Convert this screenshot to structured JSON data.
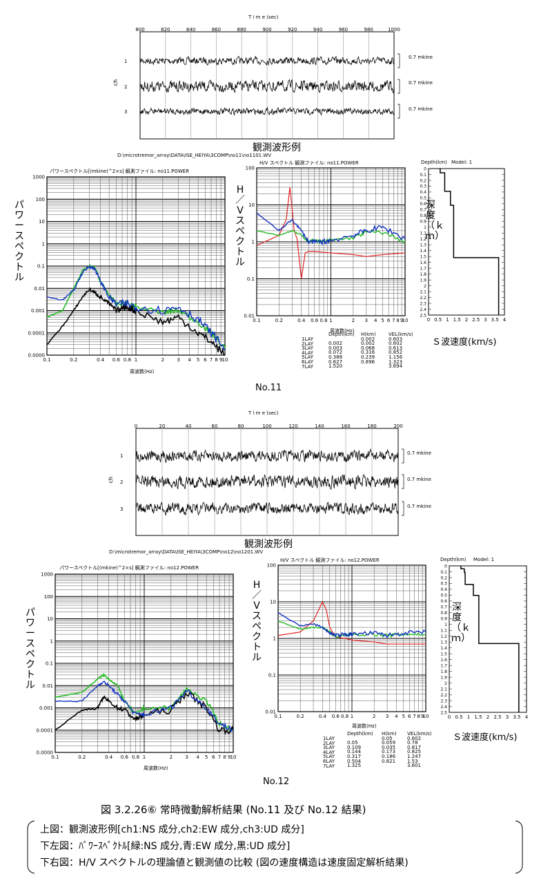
{
  "no11": {
    "wave": {
      "time_label": "T i m e (sec)",
      "xticks": [
        "800",
        "820",
        "840",
        "860",
        "880",
        "900",
        "920",
        "940",
        "960",
        "980",
        "1000"
      ],
      "ch_axis": "ch",
      "channels": [
        "1",
        "2",
        "3"
      ],
      "amp": [
        "0.7  mkine",
        "0.7  mkine",
        "0.7  mkine"
      ],
      "caption": "観測波形例"
    },
    "path": "D:\\microtremor_array\\DATA\\ISE_HEIYA\\3COMP\\no11\\no1101.WV",
    "power": {
      "title": "パワースペクトル[(mkine)^2×s]   観測ファイル:  no11.POWER",
      "ylabel": "パワースペクトル",
      "yticks": [
        "1000",
        "100",
        "10",
        "1",
        "0.1",
        "0.01",
        "0.001",
        "0.0001",
        "0.0000"
      ],
      "xticks": [
        "0.1",
        "0.2",
        "0.4",
        "0.6",
        "0.8",
        "1",
        "2",
        "3",
        "4",
        "5",
        "6",
        "7",
        "8",
        "9",
        "10"
      ],
      "xlabel": "周波数(Hz)"
    },
    "hv": {
      "title": "H/V  スペクトル  観測ファイル:  no11.POWER",
      "ylabel": "H／Vスペクトル",
      "yticks": [
        "10",
        "1",
        "0.1"
      ],
      "xticks": [
        "0.1",
        "0.2",
        "0.4",
        "0.6",
        "0.8",
        "1",
        "2",
        "3",
        "4",
        "5",
        "6",
        "7",
        "8",
        "9",
        "10"
      ],
      "xlabel": "周波数(Hz)"
    },
    "model": {
      "depth_label": "Depth(km)",
      "model_label": "Model: 1",
      "yticks": [
        "0",
        "0.1",
        "0.2",
        "0.3",
        "0.4",
        "0.5",
        "0.6",
        "0.7",
        "0.8",
        "0.9",
        "1",
        "1.1",
        "1.2",
        "1.3",
        "1.4",
        "1.5",
        "1.6",
        "1.7",
        "1.8",
        "1.9",
        "2",
        "2.1",
        "2.2",
        "2.3",
        "2.4",
        "2.5"
      ],
      "xticks": [
        "0",
        "0.5",
        "1",
        "1.5",
        "2",
        "2.5",
        "3",
        "3.5",
        "4"
      ],
      "ylabel": "深度（ｋｍ）",
      "xlabel": "Ｓ波速度(km/s)"
    },
    "layers": {
      "headers": [
        "Depth(km)",
        "H(km)",
        "VEL(km/s)"
      ],
      "names": [
        "1LAY",
        "2LAY",
        "3LAY",
        "4LAY",
        "5LAY",
        "6LAY",
        "7LAY"
      ],
      "depth": [
        "",
        "0.002",
        "0.003",
        "0.072",
        "0.388",
        "0.627",
        "1.520"
      ],
      "h": [
        "0.002",
        "0.002",
        "0.068",
        "0.316",
        "0.239",
        "0.896",
        ""
      ],
      "vel": [
        "0.603",
        "0.602",
        "0.613",
        "0.852",
        "1.156",
        "1.323",
        "3.694"
      ]
    },
    "label": "No.11"
  },
  "no12": {
    "wave": {
      "time_label": "T i m e (sec)",
      "xticks": [
        "0",
        "20",
        "40",
        "60",
        "80",
        "100",
        "120",
        "140",
        "160",
        "180",
        "200"
      ],
      "ch_axis": "ch",
      "channels": [
        "1",
        "2",
        "3"
      ],
      "amp": [
        "0.7  mkine",
        "0.7  mkine",
        "0.7  mkine"
      ],
      "caption": "観測波形例"
    },
    "path": "D:\\microtremor_array\\DATA\\ISE_HEIYA\\3COMP\\no12\\no1201.WV",
    "power": {
      "title": "パワースペクトル[(mkine)^2×s]   観測ファイル:  no12.POWER",
      "ylabel": "パワースペクトル",
      "yticks": [
        "1000",
        "100",
        "10",
        "1",
        "0.1",
        "0.01",
        "0.001",
        "0.0001",
        "0.0000"
      ],
      "xticks": [
        "0.1",
        "0.2",
        "0.4",
        "0.6",
        "0.8",
        "1",
        "2",
        "3",
        "4",
        "5",
        "6",
        "7",
        "8",
        "9",
        "10"
      ],
      "xlabel": "周波数(Hz)"
    },
    "hv": {
      "title": "H/V  スペクトル  観測ファイル:  no12.POWER",
      "ylabel": "H／Vスペクトル",
      "yticks": [
        "100",
        "10",
        "1",
        "0.1",
        "0.01"
      ],
      "xticks": [
        "0.1",
        "0.2",
        "0.4",
        "0.6",
        "0.8",
        "1",
        "2",
        "3",
        "4",
        "5",
        "6",
        "7",
        "8",
        "9",
        "10"
      ],
      "xlabel": "周波数(Hz)"
    },
    "model": {
      "depth_label": "Depth(km)",
      "model_label": "Model: 1",
      "yticks": [
        "0",
        "0.1",
        "0.2",
        "0.3",
        "0.4",
        "0.5",
        "0.6",
        "0.7",
        "0.8",
        "0.9",
        "1",
        "1.1",
        "1.2",
        "1.3",
        "1.4",
        "1.5",
        "1.6",
        "1.7",
        "1.8",
        "1.9",
        "2",
        "2.1",
        "2.2",
        "2.3",
        "2.4",
        "2.5"
      ],
      "xticks": [
        "0",
        "0.5",
        "1",
        "1.5",
        "2",
        "2.5",
        "3",
        "3.5",
        "4"
      ],
      "ylabel": "深度（ｋｍ）",
      "xlabel": "Ｓ波速度(km/s)"
    },
    "layers": {
      "headers": [
        "Depth(km)",
        "H(km)",
        "VEL(km/s)"
      ],
      "names": [
        "1LAY",
        "2LAY",
        "3LAY",
        "4LAY",
        "5LAY",
        "6LAY",
        "7LAY"
      ],
      "depth": [
        "",
        "0.05",
        "0.109",
        "0.144",
        "0.317",
        "0.504",
        "1.325"
      ],
      "h": [
        "0.05",
        "0.059",
        "0.035",
        "0.173",
        "0.186",
        "0.821",
        ""
      ],
      "vel": [
        "0.602",
        "0.78",
        "0.817",
        "0.825",
        "1.247",
        "1.53",
        "3.601"
      ]
    },
    "label": "No.12"
  },
  "figure": {
    "caption": "図 3.2.26⑥  常時微動解析結果 (No.11 及び No.12 結果)",
    "notes": [
      "上図：観測波形例[ch1:NS 成分,ch2:EW 成分,ch3:UD 成分]",
      "下左図：ﾊﾟﾜｰｽﾍﾟｸﾄﾙ[緑:NS 成分,青:EW 成分,黒:UD 成分]",
      "下右図：H/V スペクトルの理論値と観測値の比較 (図の速度構造は速度固定解析結果)"
    ]
  },
  "colors": {
    "ns": "#22bb22",
    "ew": "#1030c0",
    "ud": "#000000",
    "theory": "#e02020"
  },
  "chart_data": [
    {
      "type": "line",
      "name": "no11-power",
      "x_log": true,
      "y_log": true,
      "xlim": [
        0.1,
        10
      ],
      "ylim": [
        1e-05,
        1000
      ],
      "series": [
        {
          "name": "緑:NS",
          "x": [
            0.1,
            0.15,
            0.2,
            0.25,
            0.3,
            0.35,
            0.4,
            0.5,
            0.6,
            0.8,
            1,
            2,
            3,
            5,
            7,
            10
          ],
          "y": [
            0.0005,
            0.001,
            0.01,
            0.06,
            0.1,
            0.08,
            0.02,
            0.005,
            0.002,
            0.002,
            0.0015,
            0.0008,
            0.001,
            0.0003,
            0.0001,
            2e-05
          ]
        },
        {
          "name": "青:EW",
          "x": [
            0.1,
            0.15,
            0.2,
            0.25,
            0.3,
            0.35,
            0.4,
            0.5,
            0.6,
            0.8,
            1,
            2,
            3,
            5,
            7,
            10
          ],
          "y": [
            0.004,
            0.003,
            0.008,
            0.05,
            0.1,
            0.07,
            0.02,
            0.004,
            0.002,
            0.002,
            0.0015,
            0.001,
            0.0015,
            0.0004,
            0.0001,
            2e-05
          ]
        },
        {
          "name": "黒:UD",
          "x": [
            0.1,
            0.15,
            0.2,
            0.25,
            0.3,
            0.35,
            0.4,
            0.5,
            0.6,
            0.8,
            1,
            2,
            3,
            5,
            7,
            10
          ],
          "y": [
            3e-05,
            0.0002,
            0.001,
            0.004,
            0.009,
            0.006,
            0.004,
            0.002,
            0.001,
            0.0015,
            0.001,
            0.0003,
            0.0005,
            0.0001,
            4e-05,
            1e-05
          ]
        }
      ]
    },
    {
      "type": "line",
      "name": "no11-hv",
      "x_log": true,
      "y_log": true,
      "xlim": [
        0.1,
        10
      ],
      "ylim": [
        0.01,
        100
      ],
      "series": [
        {
          "name": "theory",
          "x": [
            0.1,
            0.2,
            0.25,
            0.28,
            0.3,
            0.32,
            0.35,
            0.4,
            0.45,
            0.5,
            0.6,
            1,
            2,
            3,
            5,
            10
          ],
          "y": [
            0.8,
            1.5,
            4,
            30,
            8,
            2,
            1.2,
            0.1,
            0.5,
            0.55,
            0.55,
            0.5,
            0.45,
            0.4,
            0.45,
            0.5
          ]
        },
        {
          "name": "green",
          "x": [
            0.1,
            0.2,
            0.3,
            0.4,
            0.5,
            0.6,
            0.8,
            1,
            2,
            3,
            5,
            10
          ],
          "y": [
            2,
            1.5,
            2,
            1.5,
            1,
            1.1,
            1,
            1.1,
            1.3,
            1.8,
            1.8,
            1
          ]
        },
        {
          "name": "blue",
          "x": [
            0.1,
            0.2,
            0.3,
            0.4,
            0.5,
            0.6,
            0.8,
            1,
            2,
            3,
            5,
            10
          ],
          "y": [
            6,
            2,
            4,
            2,
            1,
            1,
            1,
            1.1,
            1.5,
            2,
            2.5,
            1.2
          ]
        }
      ]
    },
    {
      "type": "line",
      "name": "no12-power",
      "x_log": true,
      "y_log": true,
      "xlim": [
        0.1,
        10
      ],
      "ylim": [
        1e-05,
        1000
      ],
      "series": [
        {
          "name": "緑:NS",
          "x": [
            0.1,
            0.2,
            0.3,
            0.35,
            0.4,
            0.5,
            0.6,
            0.8,
            1,
            2,
            3,
            5,
            7,
            10
          ],
          "y": [
            0.003,
            0.005,
            0.02,
            0.03,
            0.02,
            0.01,
            0.002,
            0.0005,
            0.001,
            0.001,
            0.007,
            0.002,
            0.0002,
            0.0001
          ]
        },
        {
          "name": "青:EW",
          "x": [
            0.1,
            0.2,
            0.3,
            0.35,
            0.4,
            0.5,
            0.6,
            0.8,
            1,
            2,
            3,
            5,
            7,
            10
          ],
          "y": [
            0.002,
            0.002,
            0.01,
            0.015,
            0.01,
            0.004,
            0.002,
            0.0005,
            0.0005,
            0.001,
            0.006,
            0.001,
            0.0002,
            0.0001
          ]
        },
        {
          "name": "黒:UD",
          "x": [
            0.1,
            0.2,
            0.3,
            0.35,
            0.4,
            0.5,
            0.6,
            0.8,
            1,
            2,
            3,
            5,
            7,
            10
          ],
          "y": [
            0.0001,
            0.0008,
            0.001,
            0.003,
            0.002,
            0.001,
            0.0008,
            0.0003,
            0.0005,
            0.0008,
            0.005,
            0.001,
            0.0001,
            0.0001
          ]
        }
      ]
    },
    {
      "type": "line",
      "name": "no12-hv",
      "x_log": true,
      "y_log": true,
      "xlim": [
        0.1,
        10
      ],
      "ylim": [
        0.01,
        100
      ],
      "series": [
        {
          "name": "theory",
          "x": [
            0.1,
            0.2,
            0.3,
            0.4,
            0.45,
            0.5,
            0.6,
            0.8,
            1,
            2,
            3,
            5,
            10
          ],
          "y": [
            1.2,
            1.5,
            3,
            10,
            6,
            2,
            1.1,
            1,
            0.9,
            0.8,
            0.7,
            0.7,
            0.7
          ]
        },
        {
          "name": "green",
          "x": [
            0.1,
            0.2,
            0.3,
            0.4,
            0.5,
            0.6,
            0.8,
            1,
            2,
            3,
            5,
            10
          ],
          "y": [
            3,
            1.8,
            2,
            2,
            1.5,
            1.1,
            1.2,
            1.3,
            1.3,
            1.2,
            1.3,
            1.3
          ]
        },
        {
          "name": "blue",
          "x": [
            0.1,
            0.2,
            0.3,
            0.4,
            0.5,
            0.6,
            0.8,
            1,
            2,
            3,
            5,
            10
          ],
          "y": [
            5,
            2.2,
            2.5,
            2,
            1.4,
            1.2,
            1.3,
            1.3,
            1.4,
            1.2,
            1.4,
            1.5
          ]
        }
      ]
    },
    {
      "type": "line",
      "name": "no11-model",
      "xlim": [
        0,
        4
      ],
      "ylim": [
        0,
        2.5
      ],
      "series": [
        {
          "name": "vs",
          "x": [
            0.603,
            0.602,
            0.613,
            0.852,
            1.156,
            1.323,
            3.694
          ],
          "y": [
            0,
            0.002,
            0.003,
            0.072,
            0.388,
            0.627,
            1.52
          ]
        }
      ]
    },
    {
      "type": "line",
      "name": "no12-model",
      "xlim": [
        0,
        4
      ],
      "ylim": [
        0,
        2.5
      ],
      "series": [
        {
          "name": "vs",
          "x": [
            0.602,
            0.78,
            0.817,
            0.825,
            1.247,
            1.53,
            3.601
          ],
          "y": [
            0,
            0.05,
            0.109,
            0.144,
            0.317,
            0.504,
            1.325
          ]
        }
      ]
    }
  ]
}
